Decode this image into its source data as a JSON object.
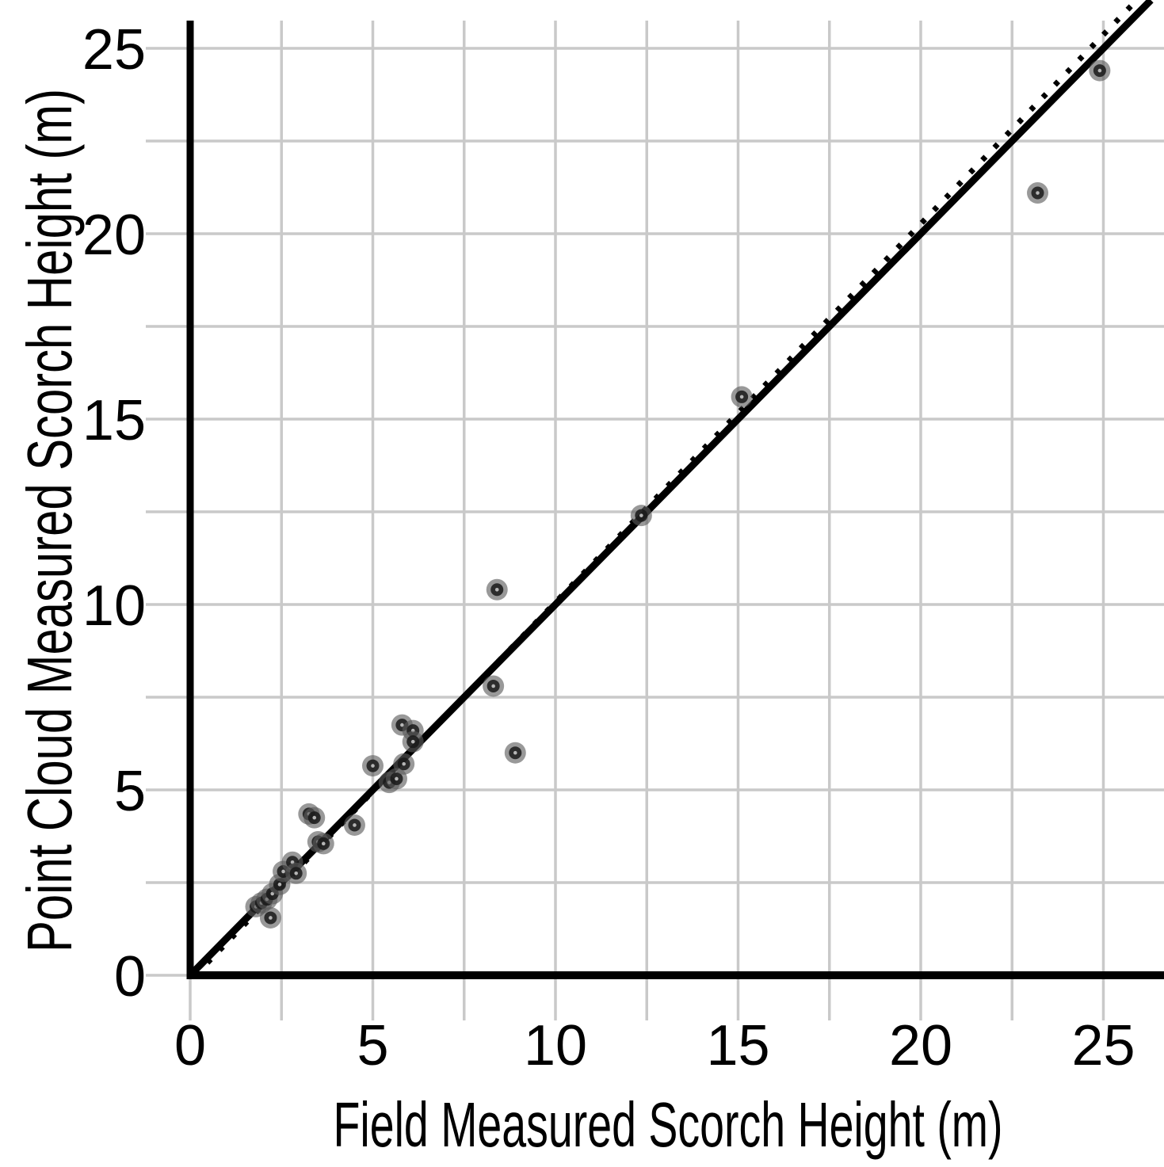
{
  "chart_data": {
    "type": "scatter",
    "title": "",
    "xlabel": "Field Measured Scorch Height (m)",
    "ylabel": "Point Cloud Measured Scorch Height (m)",
    "xlim": [
      0,
      26.7
    ],
    "ylim": [
      0,
      25.7
    ],
    "xticks": [
      "0",
      "5",
      "10",
      "15",
      "20",
      "25"
    ],
    "yticks": [
      "0",
      "5",
      "10",
      "15",
      "20",
      "25"
    ],
    "tick_step": 5,
    "minor_grid_step": 2.5,
    "grid": true,
    "legend": "none",
    "points": [
      [
        1.8,
        1.85
      ],
      [
        1.95,
        1.95
      ],
      [
        2.1,
        2.05
      ],
      [
        2.25,
        2.2
      ],
      [
        2.45,
        2.45
      ],
      [
        2.2,
        1.55
      ],
      [
        2.55,
        2.8
      ],
      [
        2.8,
        3.05
      ],
      [
        2.9,
        2.75
      ],
      [
        3.25,
        4.35
      ],
      [
        3.4,
        4.25
      ],
      [
        3.5,
        3.6
      ],
      [
        3.65,
        3.55
      ],
      [
        4.5,
        4.05
      ],
      [
        5.0,
        5.65
      ],
      [
        5.45,
        5.2
      ],
      [
        5.65,
        5.3
      ],
      [
        5.85,
        5.7
      ],
      [
        5.8,
        6.75
      ],
      [
        6.1,
        6.6
      ],
      [
        6.1,
        6.3
      ],
      [
        8.3,
        7.8
      ],
      [
        8.4,
        10.4
      ],
      [
        8.9,
        6.0
      ],
      [
        12.35,
        12.4
      ],
      [
        15.1,
        15.6
      ],
      [
        23.2,
        21.1
      ],
      [
        24.9,
        24.4
      ]
    ],
    "lines": [
      {
        "name": "one-to-one-line",
        "style": "solid",
        "slope": 1.0,
        "intercept": 0.0
      },
      {
        "name": "fit-line",
        "style": "dotted",
        "slope": 1.0205,
        "intercept": -0.145
      }
    ]
  },
  "colors": {
    "background": "#ffffff",
    "axis": "#000000",
    "gridline": "#c9c9c9",
    "line_solid": "#000000",
    "line_dotted": "#000000",
    "marker_halo": "#5a5a5a",
    "marker_core": "#191919",
    "marker_pinhole": "#bdbdbd"
  }
}
